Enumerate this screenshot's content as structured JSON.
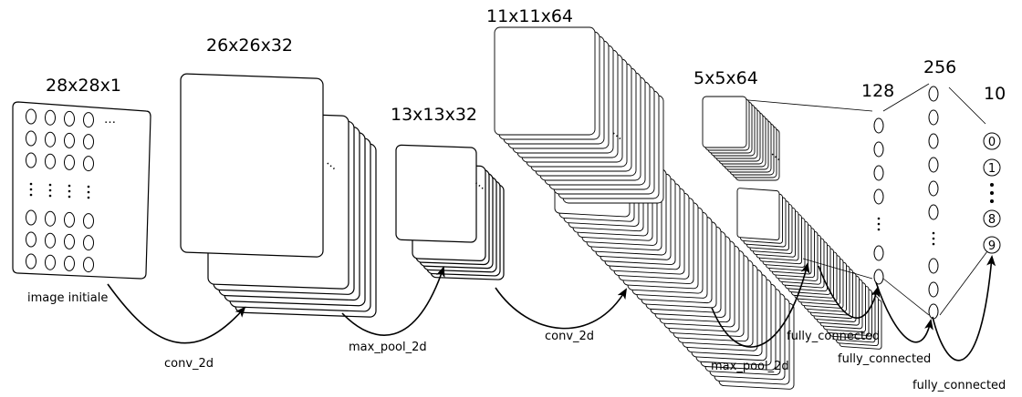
{
  "layers": [
    {
      "id": "input",
      "dims": "28x28x1",
      "caption": "image initiale"
    },
    {
      "id": "conv1",
      "dims": "26x26x32"
    },
    {
      "id": "pool1",
      "dims": "13x13x32"
    },
    {
      "id": "conv2",
      "dims": "11x11x64"
    },
    {
      "id": "pool2",
      "dims": "5x5x64"
    },
    {
      "id": "fc1",
      "dims": "128"
    },
    {
      "id": "fc2",
      "dims": "256"
    },
    {
      "id": "out",
      "dims": "10"
    }
  ],
  "operations": [
    "conv_2d",
    "max_pool_2d",
    "conv_2d",
    "max_pool_2d",
    "fully_connected",
    "fully_connected",
    "fully_connected"
  ],
  "output_digits": [
    "0",
    "1",
    "8",
    "9"
  ],
  "ellipsis": "…",
  "colors": {
    "stroke": "#000000",
    "fill": "#ffffff"
  }
}
